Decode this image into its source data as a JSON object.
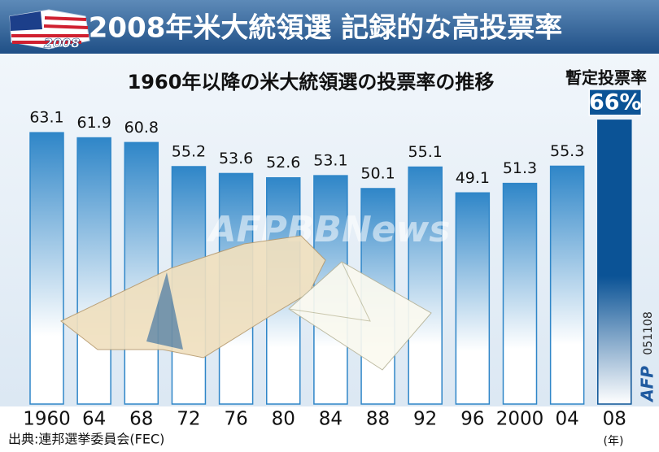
{
  "chart_data": {
    "type": "bar",
    "title": "2008年米大統領選 記録的な高投票率",
    "subtitle": "1960年以降の米大統領選の投票率の推移",
    "annotation": "暫定投票率",
    "logo_text": "2008",
    "watermark": "AFPBBNews",
    "code": "051108",
    "credit": "AFP",
    "source": "出典:連邦選挙委員会(FEC)",
    "x_unit": "(年)",
    "categories": [
      "1960",
      "64",
      "68",
      "72",
      "76",
      "80",
      "84",
      "88",
      "92",
      "96",
      "2000",
      "04",
      "08"
    ],
    "values": [
      63.1,
      61.9,
      60.8,
      55.2,
      53.6,
      52.6,
      53.1,
      50.1,
      55.1,
      49.1,
      51.3,
      55.3,
      66
    ],
    "value_labels": [
      "63.1",
      "61.9",
      "60.8",
      "55.2",
      "53.6",
      "52.6",
      "53.1",
      "50.1",
      "55.1",
      "49.1",
      "51.3",
      "55.3",
      "66%"
    ],
    "colors": [
      "#2f86c8",
      "#2f86c8",
      "#2f86c8",
      "#2f86c8",
      "#2f86c8",
      "#2f86c8",
      "#2f86c8",
      "#2f86c8",
      "#2f86c8",
      "#2f86c8",
      "#2f86c8",
      "#2f86c8",
      "#0b5396"
    ]
  }
}
